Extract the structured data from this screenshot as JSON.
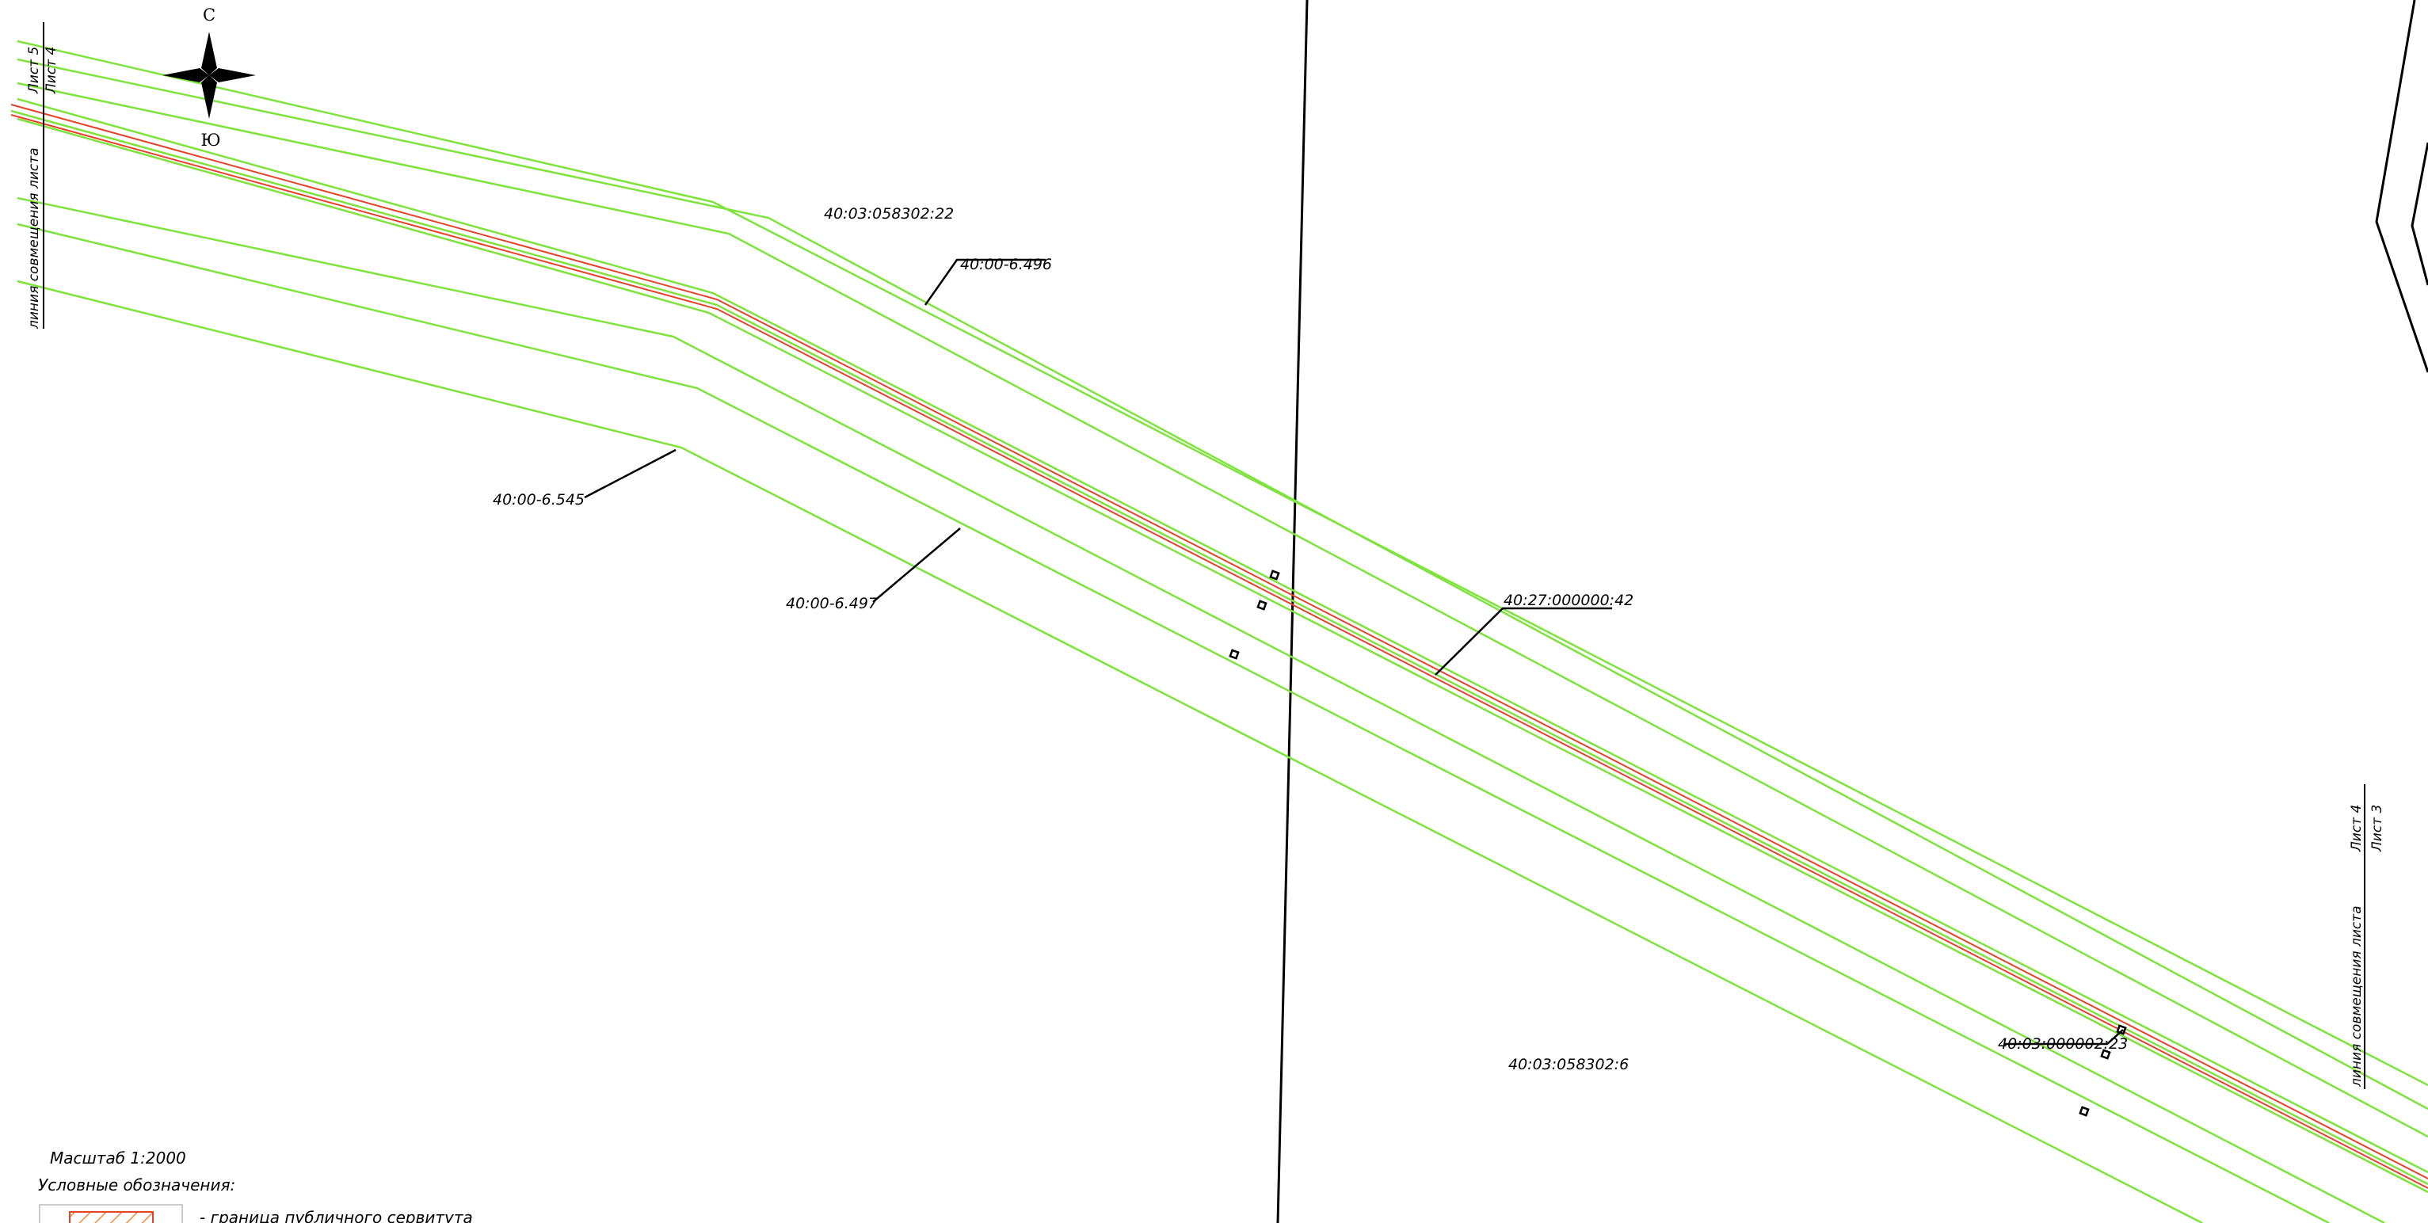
{
  "compass": {
    "north": "С",
    "south": "Ю"
  },
  "sheet_left": {
    "upper": "Лист 5",
    "lower": "Лист 4",
    "caption": "линия совмещения листа"
  },
  "sheet_right": {
    "upper": "Лист 4",
    "lower": "Лист 3",
    "caption": "линия совмещения листа"
  },
  "parcels": [
    "40:03:058302:22",
    "40:00-6.496",
    "40:00-6.545",
    "40:00-6.497",
    "40:27:000000:42",
    "40:03:000002:23",
    "40:03:058302:6"
  ],
  "scale": "Масштаб 1:2000",
  "legend": {
    "title": "Условные обозначения:",
    "items": [
      {
        "label": "- граница публичного сервитута"
      }
    ]
  },
  "colors": {
    "zone_line": "#7ee33c",
    "servitude_line": "#e8412a",
    "legend_hatch": "#f08a3c",
    "ink": "#000000"
  }
}
